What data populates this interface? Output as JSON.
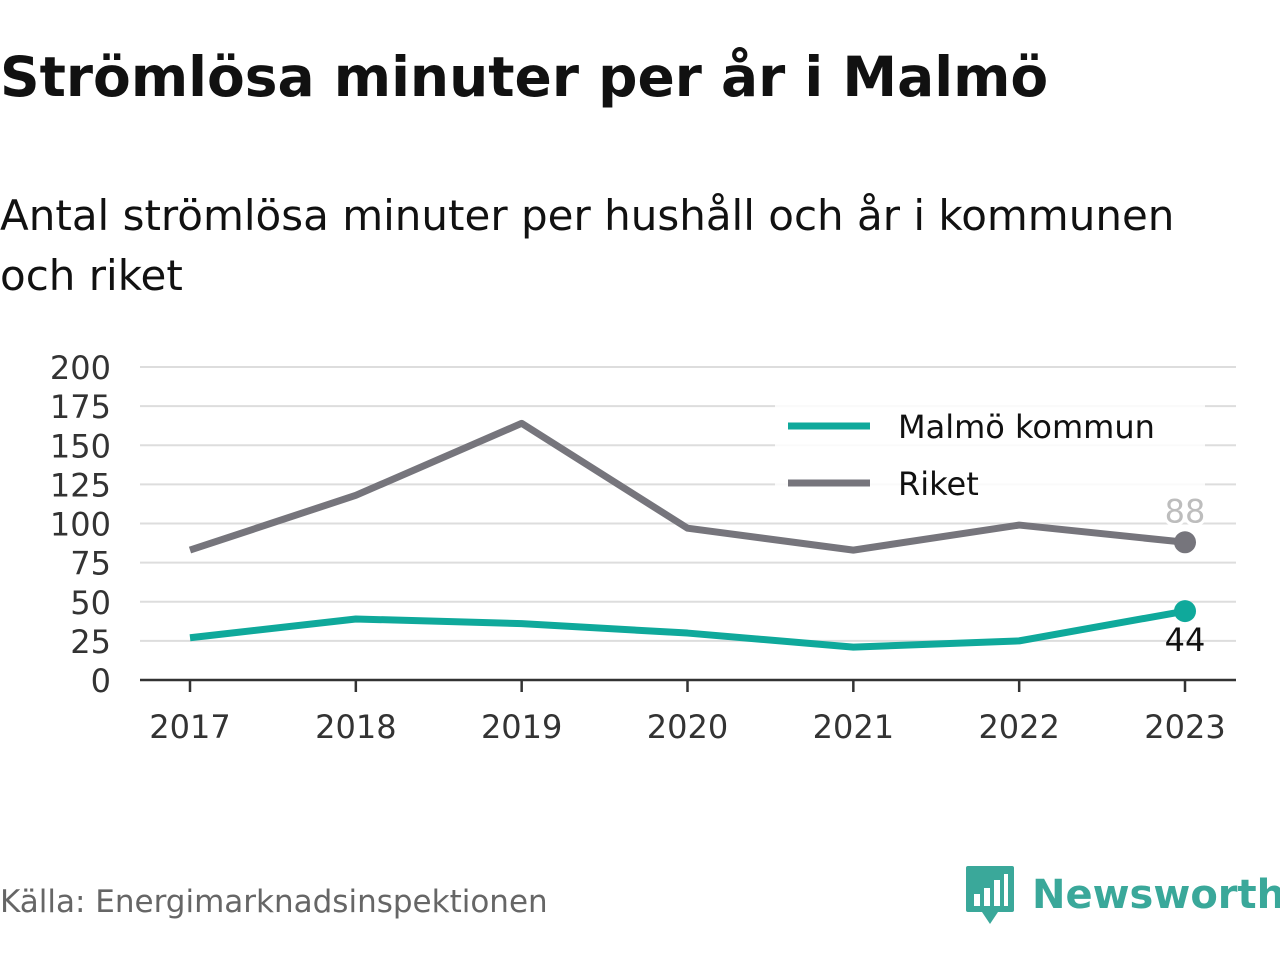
{
  "title": "Strömlösa minuter per år i Malmö",
  "subtitle": "Antal strömlösa minuter per hushåll och år i kommunen och riket",
  "source": "Källa: Energimarknadsinspektionen",
  "brand": {
    "name": "Newsworthy",
    "icon": "newsworthy-logo-icon",
    "color": "#3aa89a"
  },
  "chart_data": {
    "type": "line",
    "title": "Strömlösa minuter per år i Malmö",
    "subtitle": "Antal strömlösa minuter per hushåll och år i kommunen och riket",
    "x": [
      "2017",
      "2018",
      "2019",
      "2020",
      "2021",
      "2022",
      "2023"
    ],
    "yticks": [
      0,
      25,
      50,
      75,
      100,
      125,
      150,
      175,
      200
    ],
    "ylim": [
      0,
      200
    ],
    "xlabel": "",
    "ylabel": "",
    "grid": true,
    "legend_position": "top-right",
    "series": [
      {
        "name": "Malmö kommun",
        "color": "#0fa99b",
        "values": [
          27,
          39,
          36,
          30,
          21,
          25,
          44
        ],
        "end_label": "44"
      },
      {
        "name": "Riket",
        "color": "#76757c",
        "values": [
          83,
          118,
          164,
          97,
          83,
          99,
          88
        ],
        "end_label": "88"
      }
    ]
  }
}
